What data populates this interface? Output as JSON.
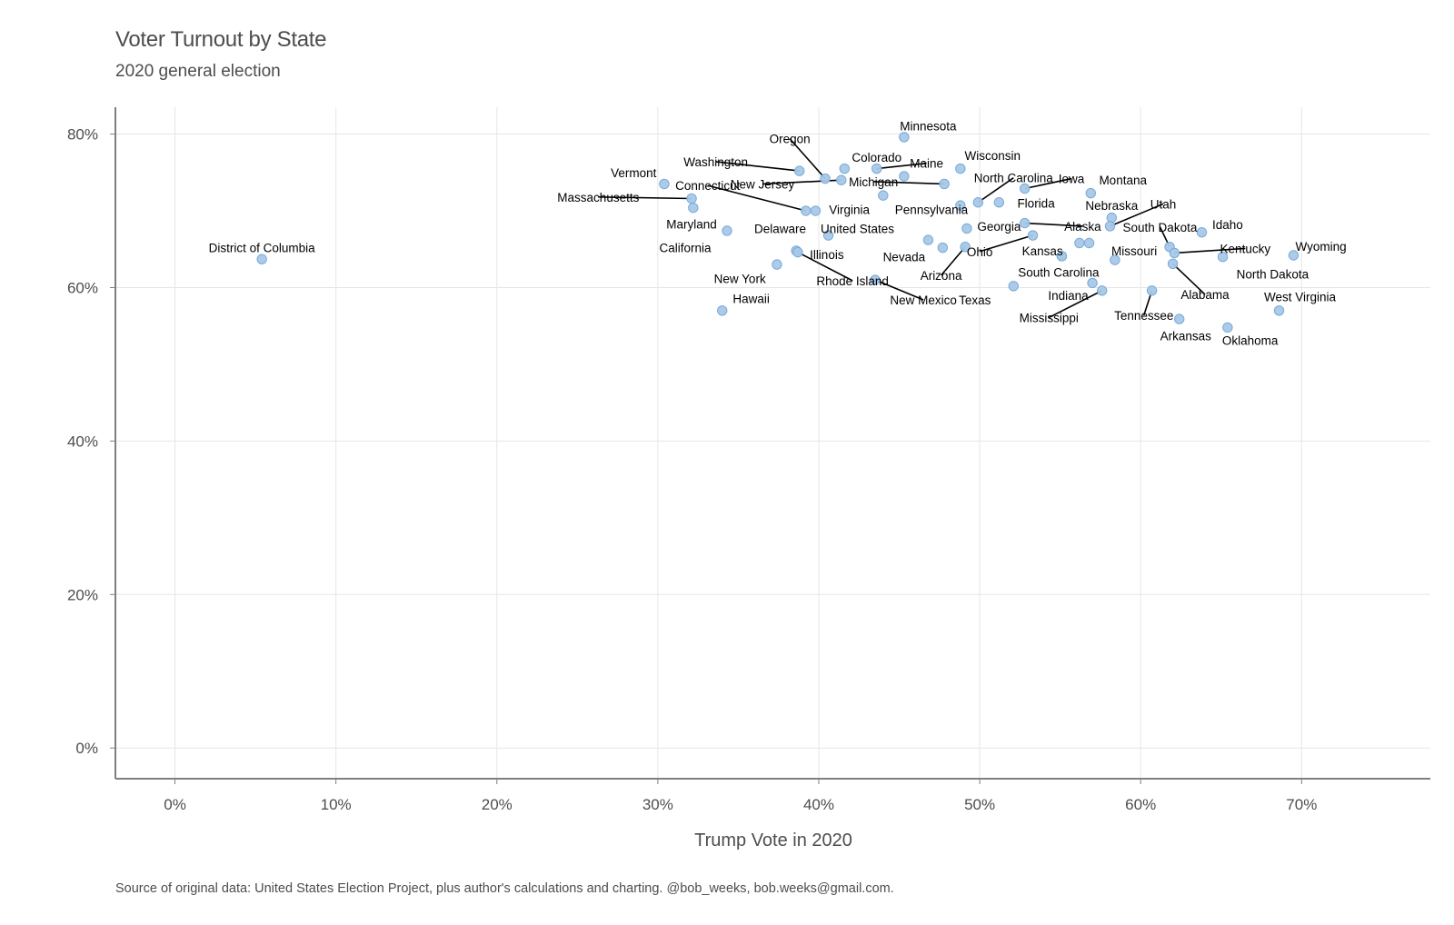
{
  "colors": {
    "point_fill": "#a6c8e8",
    "point_stroke": "#7aaad6",
    "grid": "#e6e6e6",
    "axis": "#7f7f7f",
    "text": "#4d4d4d",
    "label": "#000000"
  },
  "chart_data": {
    "type": "scatter",
    "title": "Voter Turnout by State",
    "subtitle": "2020 general election",
    "xlabel": "Trump Vote in 2020",
    "ylabel": "",
    "caption": "Source of original data: United States Election Project, plus author's calculations and charting. @bob_weeks, bob.weeks@gmail.com.",
    "xlim": [
      -0.037,
      0.78
    ],
    "ylim": [
      -0.04,
      0.835
    ],
    "x_ticks": [
      0,
      0.1,
      0.2,
      0.3,
      0.4,
      0.5,
      0.6,
      0.7
    ],
    "x_tick_labels": [
      "0%",
      "10%",
      "20%",
      "30%",
      "40%",
      "50%",
      "60%",
      "70%"
    ],
    "y_ticks": [
      0,
      0.2,
      0.4,
      0.6,
      0.8
    ],
    "y_tick_labels": [
      "0%",
      "20%",
      "40%",
      "60%",
      "80%"
    ],
    "grid": true,
    "legend": "none",
    "points": [
      {
        "label": "District of Columbia",
        "x": 0.054,
        "y": 0.637,
        "lx": 0.054,
        "ly": 0.652
      },
      {
        "label": "Vermont",
        "x": 0.304,
        "y": 0.735,
        "lx": 0.285,
        "ly": 0.75
      },
      {
        "label": "Massachusetts",
        "x": 0.321,
        "y": 0.716,
        "lx": 0.263,
        "ly": 0.718,
        "leader": true
      },
      {
        "label": "Maryland",
        "x": 0.322,
        "y": 0.704,
        "lx": 0.321,
        "ly": 0.683
      },
      {
        "label": "California",
        "x": 0.343,
        "y": 0.674,
        "lx": 0.317,
        "ly": 0.652
      },
      {
        "label": "Hawaii",
        "x": 0.34,
        "y": 0.57,
        "lx": 0.358,
        "ly": 0.586
      },
      {
        "label": "New York",
        "x": 0.374,
        "y": 0.63,
        "lx": 0.351,
        "ly": 0.612
      },
      {
        "label": "Connecticut",
        "x": 0.392,
        "y": 0.7,
        "lx": 0.331,
        "ly": 0.733,
        "leader": true
      },
      {
        "label": "Washington",
        "x": 0.388,
        "y": 0.752,
        "lx": 0.336,
        "ly": 0.764,
        "leader": true
      },
      {
        "label": "Illinois",
        "x": 0.386,
        "y": 0.648,
        "lx": 0.405,
        "ly": 0.643
      },
      {
        "label": "Rhode Island",
        "x": 0.387,
        "y": 0.646,
        "lx": 0.421,
        "ly": 0.609,
        "leader": true
      },
      {
        "label": "Virginia",
        "x": 0.398,
        "y": 0.7,
        "lx": 0.419,
        "ly": 0.702
      },
      {
        "label": "Oregon",
        "x": 0.404,
        "y": 0.742,
        "lx": 0.382,
        "ly": 0.794,
        "leader": true
      },
      {
        "label": "Delaware",
        "x": 0.406,
        "y": 0.668,
        "lx": 0.376,
        "ly": 0.677
      },
      {
        "label": "New Jersey",
        "x": 0.414,
        "y": 0.74,
        "lx": 0.365,
        "ly": 0.735,
        "leader": true
      },
      {
        "label": "Colorado",
        "x": 0.416,
        "y": 0.755,
        "lx": 0.436,
        "ly": 0.77
      },
      {
        "label": "Maine",
        "x": 0.436,
        "y": 0.755,
        "lx": 0.467,
        "ly": 0.762,
        "leader": true
      },
      {
        "label": "New Mexico",
        "x": 0.435,
        "y": 0.61,
        "lx": 0.465,
        "ly": 0.584,
        "leader": true
      },
      {
        "label": "Pennsylvania",
        "x": 0.44,
        "y": 0.72,
        "lx": 0.47,
        "ly": 0.702
      },
      {
        "label": "Minnesota",
        "x": 0.453,
        "y": 0.796,
        "lx": 0.468,
        "ly": 0.811
      },
      {
        "label": "Michigan",
        "x": 0.478,
        "y": 0.735,
        "lx": 0.434,
        "ly": 0.738,
        "leader": true
      },
      {
        "label": "unlabeled",
        "x": 0.453,
        "y": 0.745
      },
      {
        "label": "United States",
        "x": 0.468,
        "y": 0.662,
        "lx": 0.424,
        "ly": 0.677
      },
      {
        "label": "Nevada",
        "x": 0.477,
        "y": 0.652,
        "lx": 0.453,
        "ly": 0.64
      },
      {
        "label": "Wisconsin",
        "x": 0.488,
        "y": 0.755,
        "lx": 0.508,
        "ly": 0.772
      },
      {
        "label": "unlabeled",
        "x": 0.488,
        "y": 0.707
      },
      {
        "label": "Arizona",
        "x": 0.491,
        "y": 0.653,
        "lx": 0.476,
        "ly": 0.616,
        "leader": true
      },
      {
        "label": "Georgia",
        "x": 0.492,
        "y": 0.677,
        "lx": 0.512,
        "ly": 0.68
      },
      {
        "label": "North Carolina",
        "x": 0.499,
        "y": 0.711,
        "lx": 0.521,
        "ly": 0.743,
        "leader": true
      },
      {
        "label": "Florida",
        "x": 0.512,
        "y": 0.711,
        "lx": 0.535,
        "ly": 0.71
      },
      {
        "label": "Texas",
        "x": 0.521,
        "y": 0.602,
        "lx": 0.497,
        "ly": 0.584
      },
      {
        "label": "Iowa",
        "x": 0.528,
        "y": 0.729,
        "lx": 0.557,
        "ly": 0.742,
        "leader": true
      },
      {
        "label": "Alaska",
        "x": 0.528,
        "y": 0.684,
        "lx": 0.564,
        "ly": 0.68,
        "leader": true
      },
      {
        "label": "Ohio",
        "x": 0.533,
        "y": 0.668,
        "lx": 0.5,
        "ly": 0.647,
        "leader": true
      },
      {
        "label": "Kansas",
        "x": 0.551,
        "y": 0.641,
        "lx": 0.539,
        "ly": 0.648
      },
      {
        "label": "South Carolina",
        "x": 0.551,
        "y": 0.641,
        "lx": 0.549,
        "ly": 0.62
      },
      {
        "label": "unlabeled",
        "x": 0.562,
        "y": 0.658
      },
      {
        "label": "unlabeled",
        "x": 0.568,
        "y": 0.658
      },
      {
        "label": "Montana",
        "x": 0.569,
        "y": 0.723,
        "lx": 0.589,
        "ly": 0.74
      },
      {
        "label": "Indiana",
        "x": 0.57,
        "y": 0.606,
        "lx": 0.555,
        "ly": 0.59
      },
      {
        "label": "Mississippi",
        "x": 0.576,
        "y": 0.596,
        "lx": 0.543,
        "ly": 0.561,
        "leader": true
      },
      {
        "label": "Nebraska",
        "x": 0.582,
        "y": 0.691,
        "lx": 0.582,
        "ly": 0.707
      },
      {
        "label": "Utah",
        "x": 0.581,
        "y": 0.68,
        "lx": 0.614,
        "ly": 0.709,
        "leader": true
      },
      {
        "label": "Missouri",
        "x": 0.584,
        "y": 0.636,
        "lx": 0.596,
        "ly": 0.648
      },
      {
        "label": "Tennessee",
        "x": 0.607,
        "y": 0.596,
        "lx": 0.602,
        "ly": 0.564,
        "leader": true
      },
      {
        "label": "South Dakota",
        "x": 0.618,
        "y": 0.653,
        "lx": 0.612,
        "ly": 0.679,
        "leader": true
      },
      {
        "label": "Kentucky",
        "x": 0.621,
        "y": 0.645,
        "lx": 0.665,
        "ly": 0.651,
        "leader": true
      },
      {
        "label": "Alabama",
        "x": 0.62,
        "y": 0.631,
        "lx": 0.64,
        "ly": 0.591,
        "leader": true
      },
      {
        "label": "Arkansas",
        "x": 0.624,
        "y": 0.559,
        "lx": 0.628,
        "ly": 0.537
      },
      {
        "label": "Idaho",
        "x": 0.638,
        "y": 0.672,
        "lx": 0.654,
        "ly": 0.682
      },
      {
        "label": "North Dakota",
        "x": 0.651,
        "y": 0.64,
        "lx": 0.682,
        "ly": 0.618
      },
      {
        "label": "Oklahoma",
        "x": 0.654,
        "y": 0.548,
        "lx": 0.668,
        "ly": 0.531
      },
      {
        "label": "West Virginia",
        "x": 0.686,
        "y": 0.57,
        "lx": 0.699,
        "ly": 0.588
      },
      {
        "label": "Wyoming",
        "x": 0.695,
        "y": 0.642,
        "lx": 0.712,
        "ly": 0.654
      }
    ]
  }
}
